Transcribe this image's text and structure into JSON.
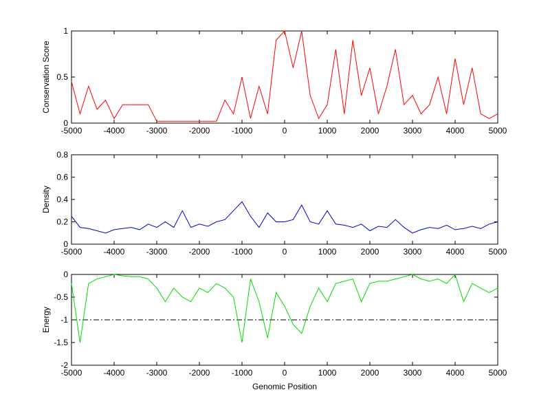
{
  "chart_data": [
    {
      "type": "line",
      "ylabel": "Conservation Score",
      "color": "#ff0000",
      "x": [
        -5000,
        -4800,
        -4600,
        -4400,
        -4200,
        -4000,
        -3800,
        -3600,
        -3400,
        -3200,
        -3000,
        -2800,
        -2600,
        -2400,
        -2200,
        -2000,
        -1800,
        -1600,
        -1400,
        -1200,
        -1000,
        -800,
        -600,
        -400,
        -200,
        0,
        200,
        400,
        600,
        800,
        1000,
        1200,
        1400,
        1600,
        1800,
        2000,
        2200,
        2400,
        2600,
        2800,
        3000,
        3200,
        3400,
        3600,
        3800,
        4000,
        4200,
        4400,
        4600,
        4800,
        5000
      ],
      "values": [
        0.45,
        0.1,
        0.4,
        0.15,
        0.25,
        0.05,
        0.2,
        0.2,
        0.2,
        0.2,
        0.02,
        0.02,
        0.02,
        0.02,
        0.02,
        0.02,
        0.02,
        0.02,
        0.25,
        0.1,
        0.5,
        0.05,
        0.4,
        0.1,
        0.9,
        1,
        0.6,
        1,
        0.3,
        0.05,
        0.2,
        0.8,
        0.1,
        0.9,
        0.3,
        0.6,
        0.1,
        0.4,
        0.8,
        0.2,
        0.3,
        0.1,
        0.2,
        0.5,
        0.1,
        0.7,
        0.2,
        0.6,
        0.1,
        0.05,
        0.1
      ],
      "xlim": [
        -5000,
        5000
      ],
      "xticks": [
        -5000,
        -4000,
        -3000,
        -2000,
        -1000,
        0,
        1000,
        2000,
        3000,
        4000,
        5000
      ],
      "ylim": [
        0,
        1
      ],
      "yticks": [
        0,
        0.5,
        1
      ],
      "grid": false
    },
    {
      "type": "line",
      "ylabel": "Density",
      "color": "#0000cc",
      "x": [
        -5000,
        -4800,
        -4600,
        -4400,
        -4200,
        -4000,
        -3800,
        -3600,
        -3400,
        -3200,
        -3000,
        -2800,
        -2600,
        -2400,
        -2200,
        -2000,
        -1800,
        -1600,
        -1400,
        -1200,
        -1000,
        -800,
        -600,
        -400,
        -200,
        0,
        200,
        400,
        600,
        800,
        1000,
        1200,
        1400,
        1600,
        1800,
        2000,
        2200,
        2400,
        2600,
        2800,
        3000,
        3200,
        3400,
        3600,
        3800,
        4000,
        4200,
        4400,
        4600,
        4800,
        5000
      ],
      "values": [
        0.25,
        0.15,
        0.14,
        0.12,
        0.1,
        0.13,
        0.14,
        0.15,
        0.13,
        0.18,
        0.15,
        0.2,
        0.15,
        0.3,
        0.15,
        0.18,
        0.16,
        0.2,
        0.22,
        0.3,
        0.38,
        0.25,
        0.15,
        0.28,
        0.2,
        0.2,
        0.22,
        0.35,
        0.2,
        0.18,
        0.3,
        0.18,
        0.17,
        0.15,
        0.18,
        0.12,
        0.16,
        0.15,
        0.22,
        0.15,
        0.1,
        0.13,
        0.15,
        0.14,
        0.17,
        0.13,
        0.14,
        0.16,
        0.14,
        0.18,
        0.2
      ],
      "xlim": [
        -5000,
        5000
      ],
      "xticks": [
        -5000,
        -4000,
        -3000,
        -2000,
        -1000,
        0,
        1000,
        2000,
        3000,
        4000,
        5000
      ],
      "ylim": [
        0,
        0.8
      ],
      "yticks": [
        0,
        0.2,
        0.4,
        0.6,
        0.8
      ],
      "grid": false
    },
    {
      "type": "line",
      "ylabel": "Energy",
      "xlabel": "Genomic Position",
      "color": "#00dd00",
      "x": [
        -5000,
        -4800,
        -4600,
        -4400,
        -4200,
        -4000,
        -3800,
        -3600,
        -3400,
        -3200,
        -3000,
        -2800,
        -2600,
        -2400,
        -2200,
        -2000,
        -1800,
        -1600,
        -1400,
        -1200,
        -1000,
        -800,
        -600,
        -400,
        -200,
        0,
        200,
        400,
        600,
        800,
        1000,
        1200,
        1400,
        1600,
        1800,
        2000,
        2200,
        2400,
        2600,
        2800,
        3000,
        3200,
        3400,
        3600,
        3800,
        4000,
        4200,
        4400,
        4600,
        4800,
        5000
      ],
      "values": [
        -0.2,
        -1.5,
        -0.2,
        -0.1,
        -0.05,
        0,
        -0.03,
        -0.05,
        -0.05,
        -0.1,
        -0.3,
        -0.6,
        -0.3,
        -0.5,
        -0.6,
        -0.3,
        -0.4,
        -0.2,
        -0.3,
        -0.5,
        -1.5,
        -0.1,
        -0.6,
        -1.4,
        -0.4,
        -0.7,
        -1.1,
        -1.3,
        -0.7,
        -0.3,
        -0.6,
        -0.2,
        -0.15,
        -0.1,
        -0.6,
        -0.2,
        -0.15,
        -0.15,
        -0.1,
        -0.05,
        0,
        -0.1,
        -0.15,
        -0.1,
        -0.2,
        0,
        -0.6,
        -0.2,
        -0.3,
        -0.4,
        -0.3
      ],
      "hline": -1,
      "xlim": [
        -5000,
        5000
      ],
      "xticks": [
        -5000,
        -4000,
        -3000,
        -2000,
        -1000,
        0,
        1000,
        2000,
        3000,
        4000,
        5000
      ],
      "ylim": [
        -2,
        0
      ],
      "yticks": [
        -2,
        -1.5,
        -1,
        -0.5,
        0
      ],
      "grid": false
    }
  ]
}
